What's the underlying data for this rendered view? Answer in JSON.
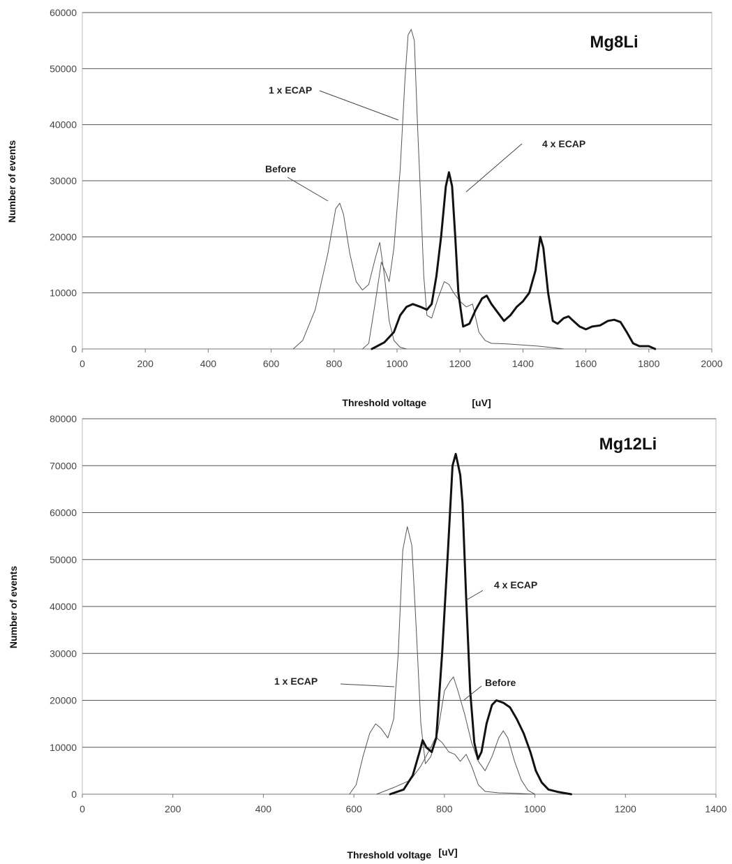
{
  "chart_data": [
    {
      "type": "line",
      "title": "Mg8Li",
      "xlabel": "Threshold voltage",
      "xunit": "[uV]",
      "ylabel": "Number of events",
      "xlim": [
        0,
        2000
      ],
      "ylim": [
        0,
        60000
      ],
      "xticks": [
        "0",
        "200",
        "400",
        "600",
        "800",
        "1000",
        "1200",
        "1400",
        "1600",
        "1800",
        "2000"
      ],
      "yticks": [
        "0",
        "10000",
        "20000",
        "30000",
        "40000",
        "50000",
        "60000"
      ],
      "grid": "horizontal",
      "series": [
        {
          "name": "Before",
          "color": "#555555",
          "width": 1,
          "points": [
            [
              670,
              0
            ],
            [
              700,
              1500
            ],
            [
              740,
              7000
            ],
            [
              780,
              17000
            ],
            [
              805,
              25000
            ],
            [
              818,
              26000
            ],
            [
              830,
              24000
            ],
            [
              850,
              17000
            ],
            [
              870,
              12000
            ],
            [
              890,
              10500
            ],
            [
              910,
              11500
            ],
            [
              930,
              16000
            ],
            [
              945,
              19000
            ],
            [
              960,
              13000
            ],
            [
              975,
              5000
            ],
            [
              990,
              1500
            ],
            [
              1010,
              300
            ],
            [
              1030,
              0
            ]
          ]
        },
        {
          "name": "1 x ECAP",
          "color": "#555555",
          "width": 1,
          "points": [
            [
              890,
              0
            ],
            [
              910,
              1000
            ],
            [
              930,
              8000
            ],
            [
              950,
              15500
            ],
            [
              965,
              13500
            ],
            [
              975,
              12000
            ],
            [
              990,
              18000
            ],
            [
              1010,
              32000
            ],
            [
              1025,
              48000
            ],
            [
              1035,
              56000
            ],
            [
              1045,
              57000
            ],
            [
              1055,
              55000
            ],
            [
              1065,
              40000
            ],
            [
              1075,
              27000
            ],
            [
              1085,
              13000
            ],
            [
              1095,
              6000
            ],
            [
              1110,
              5500
            ],
            [
              1130,
              9000
            ],
            [
              1150,
              12000
            ],
            [
              1165,
              11500
            ],
            [
              1180,
              10000
            ],
            [
              1200,
              8500
            ],
            [
              1220,
              7500
            ],
            [
              1240,
              8000
            ],
            [
              1260,
              3000
            ],
            [
              1280,
              1500
            ],
            [
              1300,
              1000
            ],
            [
              1350,
              900
            ],
            [
              1400,
              700
            ],
            [
              1450,
              500
            ],
            [
              1500,
              200
            ],
            [
              1530,
              0
            ]
          ]
        },
        {
          "name": "4 x ECAP",
          "color": "#111111",
          "width": 3,
          "points": [
            [
              920,
              0
            ],
            [
              960,
              1200
            ],
            [
              990,
              3000
            ],
            [
              1010,
              6000
            ],
            [
              1030,
              7500
            ],
            [
              1050,
              8000
            ],
            [
              1075,
              7500
            ],
            [
              1095,
              7000
            ],
            [
              1110,
              8000
            ],
            [
              1125,
              13000
            ],
            [
              1140,
              20000
            ],
            [
              1155,
              29000
            ],
            [
              1165,
              31500
            ],
            [
              1175,
              29000
            ],
            [
              1185,
              20000
            ],
            [
              1195,
              10000
            ],
            [
              1210,
              4000
            ],
            [
              1230,
              4500
            ],
            [
              1250,
              7000
            ],
            [
              1270,
              9000
            ],
            [
              1285,
              9500
            ],
            [
              1300,
              8000
            ],
            [
              1320,
              6500
            ],
            [
              1340,
              5000
            ],
            [
              1360,
              6000
            ],
            [
              1380,
              7500
            ],
            [
              1400,
              8500
            ],
            [
              1420,
              10000
            ],
            [
              1440,
              14000
            ],
            [
              1455,
              20000
            ],
            [
              1465,
              18000
            ],
            [
              1480,
              10000
            ],
            [
              1495,
              5000
            ],
            [
              1510,
              4500
            ],
            [
              1530,
              5500
            ],
            [
              1545,
              5800
            ],
            [
              1560,
              5000
            ],
            [
              1580,
              4000
            ],
            [
              1600,
              3500
            ],
            [
              1620,
              4000
            ],
            [
              1645,
              4200
            ],
            [
              1670,
              5000
            ],
            [
              1690,
              5200
            ],
            [
              1710,
              4800
            ],
            [
              1730,
              3000
            ],
            [
              1750,
              1000
            ],
            [
              1770,
              500
            ],
            [
              1800,
              500
            ],
            [
              1820,
              0
            ]
          ]
        }
      ],
      "annotations": [
        {
          "text": "1 x ECAP",
          "series": "1 x ECAP"
        },
        {
          "text": "4 x ECAP",
          "series": "4 x ECAP"
        },
        {
          "text": "Before",
          "series": "Before"
        }
      ]
    },
    {
      "type": "line",
      "title": "Mg12Li",
      "xlabel": "Threshold voltage",
      "xunit": "[uV]",
      "ylabel": "Number of events",
      "xlim": [
        0,
        1400
      ],
      "ylim": [
        0,
        80000
      ],
      "xticks": [
        "0",
        "200",
        "400",
        "600",
        "800",
        "1000",
        "1200",
        "1400"
      ],
      "yticks": [
        "0",
        "10000",
        "20000",
        "30000",
        "40000",
        "50000",
        "60000",
        "70000",
        "80000"
      ],
      "grid": "horizontal",
      "series": [
        {
          "name": "1 x ECAP",
          "color": "#555555",
          "width": 1,
          "points": [
            [
              590,
              0
            ],
            [
              605,
              2000
            ],
            [
              620,
              8000
            ],
            [
              635,
              13000
            ],
            [
              648,
              15000
            ],
            [
              660,
              14000
            ],
            [
              675,
              12000
            ],
            [
              688,
              16000
            ],
            [
              698,
              30000
            ],
            [
              708,
              52000
            ],
            [
              718,
              57000
            ],
            [
              728,
              53000
            ],
            [
              738,
              35000
            ],
            [
              748,
              15000
            ],
            [
              758,
              6500
            ],
            [
              770,
              8000
            ],
            [
              783,
              12000
            ],
            [
              795,
              11000
            ],
            [
              810,
              9000
            ],
            [
              823,
              8500
            ],
            [
              835,
              7000
            ],
            [
              848,
              8500
            ],
            [
              860,
              6000
            ],
            [
              875,
              2000
            ],
            [
              890,
              600
            ],
            [
              920,
              300
            ],
            [
              960,
              200
            ],
            [
              1000,
              0
            ]
          ]
        },
        {
          "name": "Before",
          "color": "#555555",
          "width": 1,
          "points": [
            [
              650,
              0
            ],
            [
              690,
              1500
            ],
            [
              725,
              3000
            ],
            [
              748,
              6000
            ],
            [
              770,
              10000
            ],
            [
              785,
              13000
            ],
            [
              800,
              22000
            ],
            [
              812,
              24000
            ],
            [
              820,
              25000
            ],
            [
              830,
              22000
            ],
            [
              845,
              17000
            ],
            [
              860,
              11000
            ],
            [
              875,
              7000
            ],
            [
              890,
              5000
            ],
            [
              905,
              8000
            ],
            [
              920,
              12000
            ],
            [
              930,
              13500
            ],
            [
              940,
              12000
            ],
            [
              955,
              7000
            ],
            [
              970,
              3000
            ],
            [
              985,
              800
            ],
            [
              1000,
              0
            ]
          ]
        },
        {
          "name": "4 x ECAP",
          "color": "#111111",
          "width": 3,
          "points": [
            [
              680,
              0
            ],
            [
              710,
              1000
            ],
            [
              730,
              4000
            ],
            [
              745,
              9000
            ],
            [
              752,
              11500
            ],
            [
              760,
              10000
            ],
            [
              772,
              9000
            ],
            [
              782,
              12000
            ],
            [
              795,
              30000
            ],
            [
              808,
              52000
            ],
            [
              818,
              70000
            ],
            [
              825,
              72500
            ],
            [
              835,
              68000
            ],
            [
              840,
              62000
            ],
            [
              848,
              42000
            ],
            [
              857,
              22000
            ],
            [
              866,
              11000
            ],
            [
              874,
              7500
            ],
            [
              882,
              9000
            ],
            [
              893,
              15000
            ],
            [
              905,
              19000
            ],
            [
              915,
              20000
            ],
            [
              930,
              19500
            ],
            [
              945,
              18500
            ],
            [
              960,
              16000
            ],
            [
              975,
              13000
            ],
            [
              990,
              9000
            ],
            [
              1002,
              5000
            ],
            [
              1015,
              2500
            ],
            [
              1030,
              1000
            ],
            [
              1050,
              500
            ],
            [
              1080,
              0
            ]
          ]
        }
      ],
      "annotations": [
        {
          "text": "4 x ECAP",
          "series": "4 x ECAP"
        },
        {
          "text": "1 x ECAP",
          "series": "1 x ECAP"
        },
        {
          "text": "Before",
          "series": "Before"
        }
      ]
    }
  ]
}
